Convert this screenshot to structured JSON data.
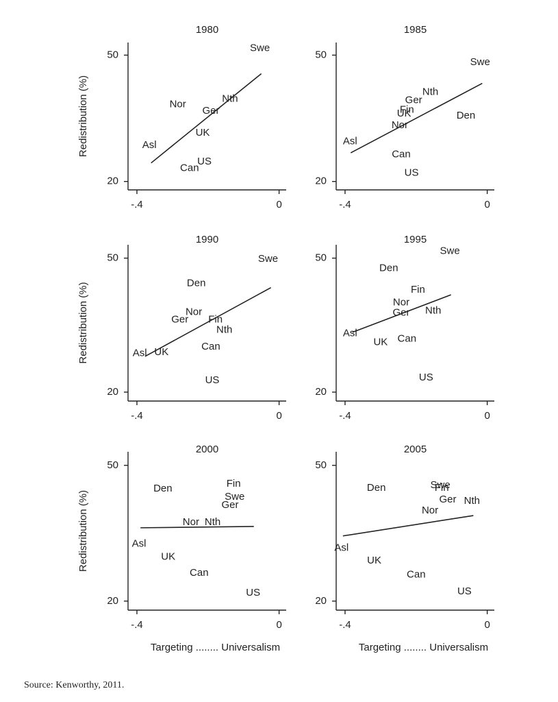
{
  "chart_data": [
    {
      "type": "scatter",
      "title": "1980",
      "ylabel": "Redistribution (%)",
      "labels": [
        "Swe",
        "Nth",
        "Nor",
        "Ger",
        "UK",
        "Asl",
        "US",
        "Can"
      ],
      "x": [
        -0.054,
        -0.138,
        -0.285,
        -0.192,
        -0.215,
        -0.365,
        -0.21,
        -0.252
      ],
      "values": [
        51.6,
        39.6,
        38.3,
        36.7,
        31.5,
        28.6,
        24.7,
        23.1
      ],
      "fit": {
        "x": [
          -0.36,
          -0.05
        ],
        "y": [
          24.4,
          45.6
        ]
      },
      "xlim": [
        -0.425,
        0.02
      ],
      "ylim": [
        18,
        53
      ],
      "xticks": [
        {
          "value": -0.4,
          "label": "-.4"
        },
        0
      ],
      "yticks": [
        20,
        50
      ]
    },
    {
      "type": "scatter",
      "title": "1985",
      "labels": [
        "Swe",
        "Nth",
        "Ger",
        "Fin",
        "UK",
        "Den",
        "Nor",
        "Asl",
        "Can",
        "US"
      ],
      "x": [
        -0.02,
        -0.16,
        -0.207,
        -0.226,
        -0.234,
        -0.06,
        -0.246,
        -0.386,
        -0.242,
        -0.213
      ],
      "values": [
        48.3,
        41.2,
        39.2,
        37.0,
        36.1,
        35.6,
        33.3,
        29.5,
        26.4,
        22.0
      ],
      "fit": {
        "x": [
          -0.384,
          -0.014
        ],
        "y": [
          26.8,
          43.3
        ]
      },
      "xlim": [
        -0.425,
        0.02
      ],
      "ylim": [
        18,
        53
      ],
      "xticks": [
        {
          "value": -0.4,
          "label": "-.4"
        },
        0
      ],
      "yticks": [
        20,
        50
      ]
    },
    {
      "type": "scatter",
      "title": "1990",
      "ylabel": "Redistribution (%)",
      "labels": [
        "Swe",
        "Den",
        "Nor",
        "Ger",
        "Fin",
        "Nth",
        "Can",
        "Asl",
        "UK",
        "US"
      ],
      "x": [
        -0.031,
        -0.233,
        -0.24,
        -0.279,
        -0.179,
        -0.154,
        -0.192,
        -0.392,
        -0.331,
        -0.188
      ],
      "values": [
        49.8,
        44.3,
        37.9,
        36.2,
        36.2,
        33.9,
        30.1,
        28.7,
        28.9,
        22.6
      ],
      "fit": {
        "x": [
          -0.377,
          -0.023
        ],
        "y": [
          28.0,
          43.4
        ]
      },
      "xlim": [
        -0.425,
        0.02
      ],
      "ylim": [
        18,
        53
      ],
      "xticks": [
        {
          "value": -0.4,
          "label": "-.4"
        },
        0
      ],
      "yticks": [
        20,
        50
      ]
    },
    {
      "type": "scatter",
      "title": "1995",
      "labels": [
        "Swe",
        "Den",
        "Fin",
        "Nor",
        "Ger",
        "Nth",
        "Asl",
        "UK",
        "Can",
        "US"
      ],
      "x": [
        -0.105,
        -0.277,
        -0.195,
        -0.242,
        -0.242,
        -0.152,
        -0.386,
        -0.3,
        -0.226,
        -0.172
      ],
      "values": [
        51.5,
        47.7,
        42.9,
        40.0,
        37.7,
        38.2,
        33.1,
        31.1,
        31.9,
        23.2
      ],
      "fit": {
        "x": [
          -0.379,
          -0.102
        ],
        "y": [
          33.4,
          41.8
        ]
      },
      "xlim": [
        -0.425,
        0.02
      ],
      "ylim": [
        18,
        53
      ],
      "xticks": [
        {
          "value": -0.4,
          "label": "-.4"
        },
        0
      ],
      "yticks": [
        20,
        50
      ]
    },
    {
      "type": "scatter",
      "title": "2000",
      "ylabel": "Redistribution (%)",
      "xlabel": "Targeting ........ Universalism",
      "labels": [
        "Fin",
        "Swe",
        "Ger",
        "Den",
        "Nor",
        "Nth",
        "Asl",
        "UK",
        "Can",
        "US"
      ],
      "x": [
        -0.128,
        -0.125,
        -0.138,
        -0.327,
        -0.248,
        -0.187,
        -0.394,
        -0.312,
        -0.225,
        -0.073
      ],
      "values": [
        45.9,
        43.0,
        41.2,
        44.8,
        37.4,
        37.4,
        32.6,
        29.7,
        26.2,
        21.8
      ],
      "fit": {
        "x": [
          -0.39,
          -0.071
        ],
        "y": [
          36.2,
          36.5
        ]
      },
      "xlim": [
        -0.425,
        0.02
      ],
      "ylim": [
        18,
        53
      ],
      "xticks": [
        {
          "value": -0.4,
          "label": "-.4"
        },
        0
      ],
      "yticks": [
        20,
        50
      ]
    },
    {
      "type": "scatter",
      "title": "2005",
      "xlabel": "Targeting ........ Universalism",
      "labels": [
        "Swe",
        "Fin",
        "Ger",
        "Nth",
        "Den",
        "Nor",
        "Asl",
        "UK",
        "Can",
        "US"
      ],
      "x": [
        -0.132,
        -0.128,
        -0.111,
        -0.043,
        -0.312,
        -0.161,
        -0.41,
        -0.318,
        -0.2,
        -0.064
      ],
      "values": [
        45.6,
        45.0,
        42.4,
        42.1,
        45.0,
        40.0,
        31.7,
        28.9,
        25.8,
        22.1
      ],
      "fit": {
        "x": [
          -0.406,
          -0.039
        ],
        "y": [
          34.4,
          38.9
        ]
      },
      "xlim": [
        -0.425,
        0.02
      ],
      "ylim": [
        18,
        53
      ],
      "xticks": [
        {
          "value": -0.4,
          "label": "-.4"
        },
        0
      ],
      "yticks": [
        20,
        50
      ]
    }
  ],
  "source": "Source: Kenworthy, 2011."
}
